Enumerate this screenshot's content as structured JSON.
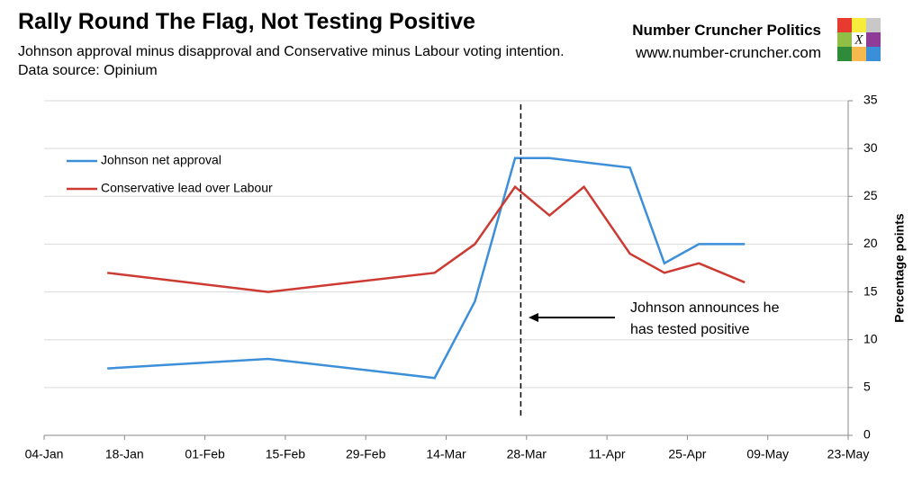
{
  "chart_data": {
    "type": "line",
    "title": "Rally Round The Flag, Not Testing Positive",
    "subtitle": "Johnson approval minus disapproval and Conservative minus Labour voting intention. Data source: Opinium",
    "source_name": "Number Cruncher Politics",
    "source_url": "www.number-cruncher.com",
    "logo_text": "X",
    "y_label": "Percentage points",
    "xlim": [
      4,
      144
    ],
    "xticks": [
      {
        "value": 4,
        "label": "04-Jan"
      },
      {
        "value": 18,
        "label": "18-Jan"
      },
      {
        "value": 32,
        "label": "01-Feb"
      },
      {
        "value": 46,
        "label": "15-Feb"
      },
      {
        "value": 60,
        "label": "29-Feb"
      },
      {
        "value": 74,
        "label": "14-Mar"
      },
      {
        "value": 88,
        "label": "28-Mar"
      },
      {
        "value": 102,
        "label": "11-Apr"
      },
      {
        "value": 116,
        "label": "25-Apr"
      },
      {
        "value": 130,
        "label": "09-May"
      },
      {
        "value": 144,
        "label": "23-May"
      }
    ],
    "ylim": [
      0,
      35
    ],
    "yticks": [
      0,
      5,
      10,
      15,
      20,
      25,
      30,
      35
    ],
    "grid": true,
    "legend": "upper left",
    "series": [
      {
        "name": "Johnson net approval",
        "color": "#3d8fd9",
        "x": [
          15,
          43,
          72,
          79,
          86,
          92,
          106,
          112,
          118,
          126
        ],
        "values": [
          7,
          8,
          6,
          14,
          29,
          29,
          28,
          18,
          20,
          20
        ]
      },
      {
        "name": "Conservative lead over Labour",
        "color": "#cc3a32",
        "x": [
          15,
          43,
          72,
          79,
          86,
          92,
          98,
          106,
          112,
          118,
          126
        ],
        "values": [
          17,
          15,
          17,
          20,
          26,
          23,
          26,
          19,
          17,
          18,
          16
        ]
      }
    ],
    "annotation": {
      "x": 87,
      "lines": [
        "Johnson announces he",
        "has tested positive"
      ]
    }
  }
}
